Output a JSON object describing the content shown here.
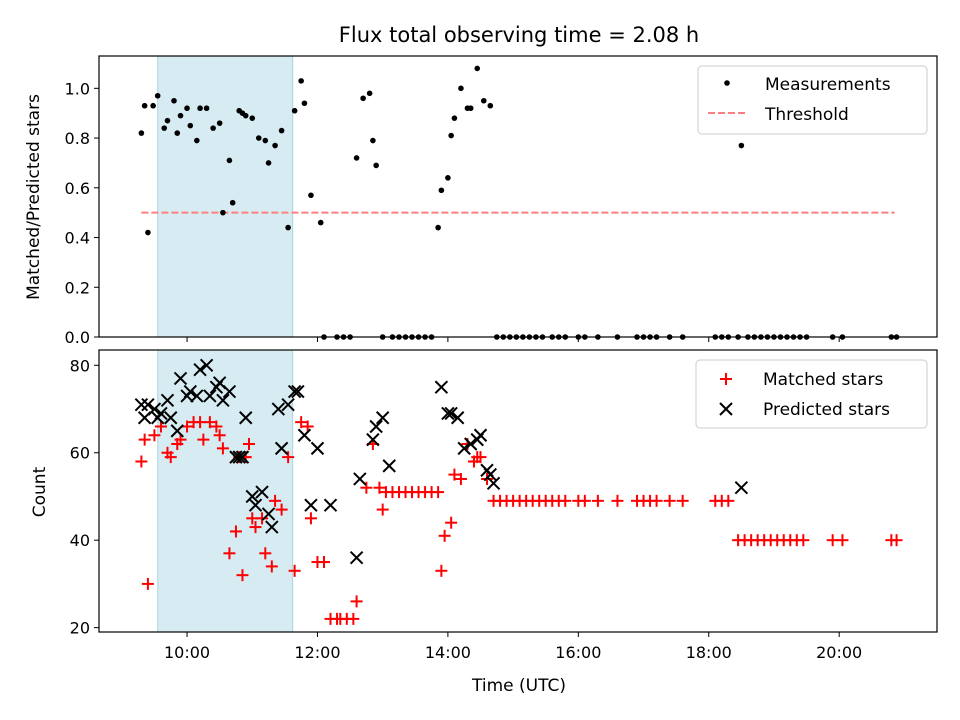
{
  "chart_data": [
    {
      "type": "scatter",
      "title": "Flux total observing time = 2.08 h",
      "xlabel": "",
      "ylabel": "Matched/Predicted stars",
      "x_unit": "hours UTC",
      "xlim": [
        8.65,
        21.5
      ],
      "ylim": [
        0.0,
        1.13
      ],
      "yticks": [
        "0.0",
        "0.2",
        "0.4",
        "0.6",
        "0.8",
        "1.0"
      ],
      "legend": {
        "position": "top-right",
        "entries": [
          "Measurements",
          "Threshold"
        ]
      },
      "highlight_span": {
        "x_start": 9.55,
        "x_end": 11.62,
        "color": "#add8e6"
      },
      "threshold": {
        "name": "Threshold",
        "y": 0.5,
        "x_start": 9.3,
        "x_end": 20.85,
        "color": "#ff7f7f",
        "style": "dashed"
      },
      "series": [
        {
          "name": "Measurements",
          "color": "#000000",
          "points": [
            [
              9.3,
              0.82
            ],
            [
              9.35,
              0.93
            ],
            [
              9.4,
              0.42
            ],
            [
              9.48,
              0.93
            ],
            [
              9.55,
              0.97
            ],
            [
              9.65,
              0.84
            ],
            [
              9.7,
              0.87
            ],
            [
              9.8,
              0.95
            ],
            [
              9.85,
              0.82
            ],
            [
              9.9,
              0.89
            ],
            [
              10.0,
              0.92
            ],
            [
              10.05,
              0.85
            ],
            [
              10.15,
              0.79
            ],
            [
              10.2,
              0.92
            ],
            [
              10.3,
              0.92
            ],
            [
              10.4,
              0.84
            ],
            [
              10.5,
              0.86
            ],
            [
              10.55,
              0.5
            ],
            [
              10.65,
              0.71
            ],
            [
              10.7,
              0.54
            ],
            [
              10.8,
              0.91
            ],
            [
              10.85,
              0.9
            ],
            [
              10.9,
              0.89
            ],
            [
              11.0,
              0.88
            ],
            [
              11.1,
              0.8
            ],
            [
              11.2,
              0.79
            ],
            [
              11.25,
              0.7
            ],
            [
              11.35,
              0.77
            ],
            [
              11.45,
              0.83
            ],
            [
              11.55,
              0.44
            ],
            [
              11.65,
              0.91
            ],
            [
              11.75,
              1.03
            ],
            [
              11.8,
              0.94
            ],
            [
              11.9,
              0.57
            ],
            [
              12.05,
              0.46
            ],
            [
              12.1,
              0.0
            ],
            [
              12.3,
              0.0
            ],
            [
              12.4,
              0.0
            ],
            [
              12.5,
              0.0
            ],
            [
              12.6,
              0.72
            ],
            [
              12.7,
              0.96
            ],
            [
              12.8,
              0.98
            ],
            [
              12.85,
              0.79
            ],
            [
              12.9,
              0.69
            ],
            [
              13.0,
              0.0
            ],
            [
              13.15,
              0.0
            ],
            [
              13.25,
              0.0
            ],
            [
              13.35,
              0.0
            ],
            [
              13.45,
              0.0
            ],
            [
              13.55,
              0.0
            ],
            [
              13.65,
              0.0
            ],
            [
              13.75,
              0.0
            ],
            [
              13.85,
              0.44
            ],
            [
              13.9,
              0.59
            ],
            [
              14.0,
              0.64
            ],
            [
              14.05,
              0.81
            ],
            [
              14.1,
              0.88
            ],
            [
              14.2,
              1.0
            ],
            [
              14.3,
              0.92
            ],
            [
              14.35,
              0.92
            ],
            [
              14.45,
              1.08
            ],
            [
              14.55,
              0.95
            ],
            [
              14.65,
              0.93
            ],
            [
              14.75,
              0.0
            ],
            [
              14.85,
              0.0
            ],
            [
              14.95,
              0.0
            ],
            [
              15.05,
              0.0
            ],
            [
              15.15,
              0.0
            ],
            [
              15.25,
              0.0
            ],
            [
              15.35,
              0.0
            ],
            [
              15.45,
              0.0
            ],
            [
              15.6,
              0.0
            ],
            [
              15.7,
              0.0
            ],
            [
              15.8,
              0.0
            ],
            [
              16.0,
              0.0
            ],
            [
              16.1,
              0.0
            ],
            [
              16.3,
              0.0
            ],
            [
              16.6,
              0.0
            ],
            [
              16.9,
              0.0
            ],
            [
              17.0,
              0.0
            ],
            [
              17.1,
              0.0
            ],
            [
              17.2,
              0.0
            ],
            [
              17.4,
              0.0
            ],
            [
              17.6,
              0.0
            ],
            [
              18.1,
              0.0
            ],
            [
              18.2,
              0.0
            ],
            [
              18.3,
              0.0
            ],
            [
              18.45,
              0.0
            ],
            [
              18.5,
              0.77
            ],
            [
              18.6,
              0.0
            ],
            [
              18.7,
              0.0
            ],
            [
              18.8,
              0.0
            ],
            [
              18.9,
              0.0
            ],
            [
              19.0,
              0.0
            ],
            [
              19.1,
              0.0
            ],
            [
              19.2,
              0.0
            ],
            [
              19.3,
              0.0
            ],
            [
              19.4,
              0.0
            ],
            [
              19.5,
              0.0
            ],
            [
              19.9,
              0.0
            ],
            [
              20.05,
              0.0
            ],
            [
              20.8,
              0.0
            ],
            [
              20.88,
              0.0
            ]
          ]
        }
      ]
    },
    {
      "type": "scatter",
      "title": "",
      "xlabel": "Time (UTC)",
      "ylabel": "Count",
      "x_unit": "hours UTC",
      "xlim": [
        8.65,
        21.5
      ],
      "ylim": [
        19,
        83.5
      ],
      "yticks": [
        "20",
        "40",
        "60",
        "80"
      ],
      "xticks": [
        "10:00",
        "12:00",
        "14:00",
        "16:00",
        "18:00",
        "20:00"
      ],
      "legend": {
        "position": "top-right",
        "entries": [
          "Matched stars",
          "Predicted stars"
        ]
      },
      "highlight_span": {
        "x_start": 9.55,
        "x_end": 11.62,
        "color": "#add8e6"
      },
      "series": [
        {
          "name": "Matched stars",
          "color": "#ff0000",
          "marker": "plus",
          "points": [
            [
              9.3,
              58
            ],
            [
              9.35,
              63
            ],
            [
              9.4,
              30
            ],
            [
              9.5,
              64
            ],
            [
              9.6,
              66
            ],
            [
              9.7,
              60
            ],
            [
              9.75,
              59
            ],
            [
              9.85,
              62
            ],
            [
              9.9,
              63
            ],
            [
              10.0,
              66
            ],
            [
              10.1,
              67
            ],
            [
              10.2,
              67
            ],
            [
              10.25,
              63
            ],
            [
              10.35,
              67
            ],
            [
              10.45,
              66
            ],
            [
              10.5,
              64
            ],
            [
              10.55,
              61
            ],
            [
              10.65,
              37
            ],
            [
              10.75,
              42
            ],
            [
              10.8,
              59
            ],
            [
              10.85,
              32
            ],
            [
              10.9,
              59
            ],
            [
              10.95,
              62
            ],
            [
              11.0,
              45
            ],
            [
              11.05,
              43
            ],
            [
              11.15,
              45
            ],
            [
              11.2,
              37
            ],
            [
              11.3,
              34
            ],
            [
              11.35,
              49
            ],
            [
              11.45,
              47
            ],
            [
              11.55,
              59
            ],
            [
              11.65,
              33
            ],
            [
              11.75,
              67
            ],
            [
              11.85,
              66
            ],
            [
              11.9,
              45
            ],
            [
              12.0,
              35
            ],
            [
              12.1,
              35
            ],
            [
              12.2,
              22
            ],
            [
              12.3,
              22
            ],
            [
              12.35,
              22
            ],
            [
              12.45,
              22
            ],
            [
              12.55,
              22
            ],
            [
              12.6,
              26
            ],
            [
              12.75,
              52
            ],
            [
              12.85,
              62
            ],
            [
              12.95,
              52
            ],
            [
              13.0,
              47
            ],
            [
              13.05,
              51
            ],
            [
              13.15,
              51
            ],
            [
              13.25,
              51
            ],
            [
              13.35,
              51
            ],
            [
              13.45,
              51
            ],
            [
              13.55,
              51
            ],
            [
              13.65,
              51
            ],
            [
              13.75,
              51
            ],
            [
              13.85,
              51
            ],
            [
              13.9,
              33
            ],
            [
              13.95,
              41
            ],
            [
              14.05,
              44
            ],
            [
              14.1,
              55
            ],
            [
              14.2,
              54
            ],
            [
              14.3,
              62
            ],
            [
              14.4,
              58
            ],
            [
              14.45,
              59
            ],
            [
              14.5,
              59
            ],
            [
              14.6,
              54
            ],
            [
              14.7,
              49
            ],
            [
              14.8,
              49
            ],
            [
              14.9,
              49
            ],
            [
              15.0,
              49
            ],
            [
              15.1,
              49
            ],
            [
              15.2,
              49
            ],
            [
              15.3,
              49
            ],
            [
              15.4,
              49
            ],
            [
              15.5,
              49
            ],
            [
              15.6,
              49
            ],
            [
              15.7,
              49
            ],
            [
              15.8,
              49
            ],
            [
              16.0,
              49
            ],
            [
              16.1,
              49
            ],
            [
              16.3,
              49
            ],
            [
              16.6,
              49
            ],
            [
              16.9,
              49
            ],
            [
              17.0,
              49
            ],
            [
              17.1,
              49
            ],
            [
              17.2,
              49
            ],
            [
              17.4,
              49
            ],
            [
              17.6,
              49
            ],
            [
              18.1,
              49
            ],
            [
              18.2,
              49
            ],
            [
              18.3,
              49
            ],
            [
              18.45,
              40
            ],
            [
              18.55,
              40
            ],
            [
              18.65,
              40
            ],
            [
              18.75,
              40
            ],
            [
              18.85,
              40
            ],
            [
              18.95,
              40
            ],
            [
              19.05,
              40
            ],
            [
              19.15,
              40
            ],
            [
              19.25,
              40
            ],
            [
              19.35,
              40
            ],
            [
              19.45,
              40
            ],
            [
              19.9,
              40
            ],
            [
              20.05,
              40
            ],
            [
              20.8,
              40
            ],
            [
              20.88,
              40
            ]
          ]
        },
        {
          "name": "Predicted stars",
          "color": "#000000",
          "marker": "x",
          "points": [
            [
              9.3,
              71
            ],
            [
              9.35,
              68
            ],
            [
              9.4,
              71
            ],
            [
              9.5,
              70
            ],
            [
              9.55,
              68
            ],
            [
              9.6,
              69
            ],
            [
              9.7,
              72
            ],
            [
              9.75,
              68
            ],
            [
              9.85,
              65
            ],
            [
              9.9,
              77
            ],
            [
              10.0,
              73
            ],
            [
              10.05,
              74
            ],
            [
              10.15,
              73
            ],
            [
              10.2,
              79
            ],
            [
              10.3,
              80
            ],
            [
              10.35,
              73
            ],
            [
              10.45,
              75
            ],
            [
              10.5,
              76
            ],
            [
              10.55,
              72
            ],
            [
              10.65,
              74
            ],
            [
              10.75,
              59
            ],
            [
              10.8,
              59
            ],
            [
              10.85,
              59
            ],
            [
              10.9,
              68
            ],
            [
              11.0,
              50
            ],
            [
              11.05,
              48
            ],
            [
              11.15,
              51
            ],
            [
              11.25,
              46
            ],
            [
              11.3,
              43
            ],
            [
              11.4,
              70
            ],
            [
              11.45,
              61
            ],
            [
              11.55,
              71
            ],
            [
              11.65,
              74
            ],
            [
              11.7,
              74
            ],
            [
              11.8,
              64
            ],
            [
              11.9,
              48
            ],
            [
              12.0,
              61
            ],
            [
              12.2,
              48
            ],
            [
              12.6,
              36
            ],
            [
              12.65,
              54
            ],
            [
              12.85,
              63
            ],
            [
              12.9,
              66
            ],
            [
              13.0,
              68
            ],
            [
              13.1,
              57
            ],
            [
              13.9,
              75
            ],
            [
              14.0,
              69
            ],
            [
              14.05,
              69
            ],
            [
              14.15,
              68
            ],
            [
              14.25,
              61
            ],
            [
              14.35,
              62
            ],
            [
              14.45,
              63
            ],
            [
              14.5,
              64
            ],
            [
              14.6,
              56
            ],
            [
              14.65,
              55
            ],
            [
              14.7,
              53
            ],
            [
              18.5,
              52
            ]
          ]
        }
      ]
    }
  ]
}
